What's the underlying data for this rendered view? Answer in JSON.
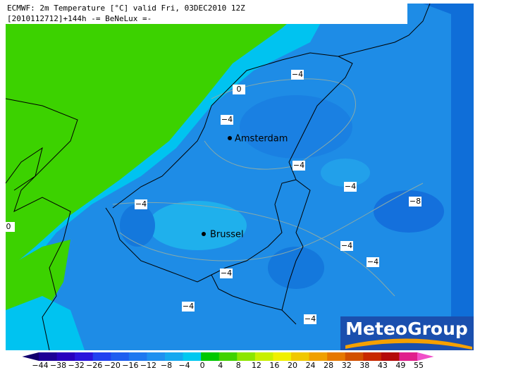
{
  "header": {
    "title": "ECMWF: 2m Temperature [°C] valid Fri, 03DEC2010 12Z",
    "subtitle": "[2010112712]+144h -= BeNeLux =-"
  },
  "cities": [
    "Amsterdam",
    "Brussel"
  ],
  "contour_labels": [
    "0",
    "−4",
    "−4",
    "−4",
    "−4",
    "−8",
    "−4",
    "0",
    "−4",
    "−4",
    "−4",
    "−4",
    "−4"
  ],
  "colorbar": {
    "labels": [
      "−44",
      "−38",
      "−32",
      "−26",
      "−20",
      "−16",
      "−12",
      "−8",
      "−4",
      "0",
      "4",
      "8",
      "12",
      "16",
      "20",
      "24",
      "28",
      "32",
      "38",
      "43",
      "49",
      "55"
    ]
  },
  "logo": "MeteoGroup"
}
